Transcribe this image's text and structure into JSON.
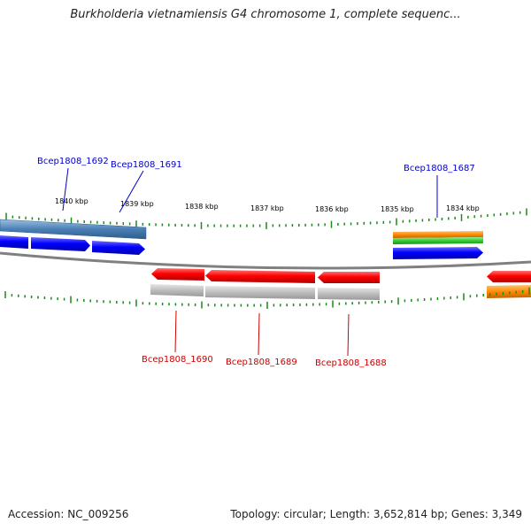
{
  "title": "Burkholderia vietnamiensis G4 chromosome 1, complete sequenc...",
  "footer": {
    "accession": "Accession: NC_009256",
    "summary": "Topology: circular; Length: 3,652,814 bp; Genes: 3,349"
  },
  "colors": {
    "forward_label": "#0000cc",
    "reverse_label": "#cc0000",
    "tick": "#1a8a1a",
    "backbone": "#808080",
    "forward_gene": "#0000ff",
    "forward_gene_steel": "#4a7fb5",
    "reverse_gene": "#ff0000",
    "reverse_feature": "#bdbdbd",
    "orange_feature": "#ff8c00",
    "green_feature": "#33cc33"
  },
  "ruler_labels": [
    "1840 kbp",
    "1839 kbp",
    "1838 kbp",
    "1837 kbp",
    "1836 kbp",
    "1835 kbp",
    "1834 kbp"
  ],
  "gene_labels": {
    "forward": [
      "Bcep1808_1692",
      "Bcep1808_1691",
      "Bcep1808_1687"
    ],
    "reverse": [
      "Bcep1808_1690",
      "Bcep1808_1689",
      "Bcep1808_1688"
    ]
  }
}
